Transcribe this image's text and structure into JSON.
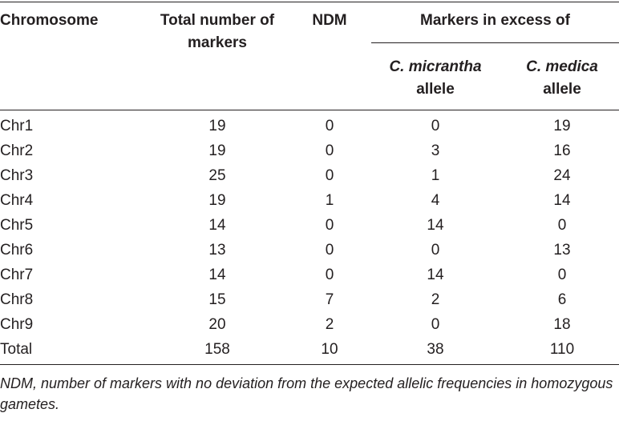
{
  "table": {
    "headers": {
      "chromosome": "Chromosome",
      "total_line1": "Total number of",
      "total_line2": "markers",
      "ndm": "NDM",
      "excess": "Markers in excess of",
      "micrantha_italic": "C. micrantha",
      "micrantha_plain": "allele",
      "medica_italic": "C. medica",
      "medica_plain": "allele"
    },
    "rows": [
      {
        "chromosome": "Chr1",
        "total": "19",
        "ndm": "0",
        "micrantha": "0",
        "medica": "19"
      },
      {
        "chromosome": "Chr2",
        "total": "19",
        "ndm": "0",
        "micrantha": "3",
        "medica": "16"
      },
      {
        "chromosome": "Chr3",
        "total": "25",
        "ndm": "0",
        "micrantha": "1",
        "medica": "24"
      },
      {
        "chromosome": "Chr4",
        "total": "19",
        "ndm": "1",
        "micrantha": "4",
        "medica": "14"
      },
      {
        "chromosome": "Chr5",
        "total": "14",
        "ndm": "0",
        "micrantha": "14",
        "medica": "0"
      },
      {
        "chromosome": "Chr6",
        "total": "13",
        "ndm": "0",
        "micrantha": "0",
        "medica": "13"
      },
      {
        "chromosome": "Chr7",
        "total": "14",
        "ndm": "0",
        "micrantha": "14",
        "medica": "0"
      },
      {
        "chromosome": "Chr8",
        "total": "15",
        "ndm": "7",
        "micrantha": "2",
        "medica": "6"
      },
      {
        "chromosome": "Chr9",
        "total": "20",
        "ndm": "2",
        "micrantha": "0",
        "medica": "18"
      },
      {
        "chromosome": "Total",
        "total": "158",
        "ndm": "10",
        "micrantha": "38",
        "medica": "110"
      }
    ]
  },
  "footnote": "NDM, number of markers with no deviation from the expected allelic frequencies in homozygous gametes."
}
